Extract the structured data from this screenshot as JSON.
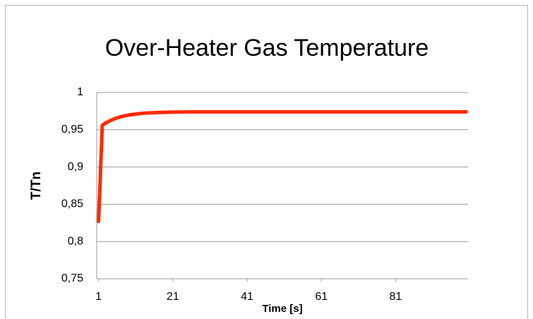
{
  "chart_data": {
    "type": "line",
    "title": "Over-Heater Gas Temperature",
    "xlabel": "Time [s]",
    "ylabel": "T/Tn",
    "x": [
      1,
      2,
      3,
      4,
      5,
      6,
      7,
      8,
      9,
      10,
      11,
      12,
      13,
      14,
      15,
      16,
      17,
      18,
      19,
      20,
      21,
      22,
      23,
      24,
      25,
      26,
      27,
      28,
      29,
      30,
      31,
      32,
      33,
      34,
      35,
      36,
      37,
      38,
      39,
      40,
      41,
      42,
      43,
      44,
      45,
      46,
      47,
      48,
      49,
      50,
      51,
      52,
      53,
      54,
      55,
      56,
      57,
      58,
      59,
      60,
      61,
      62,
      63,
      64,
      65,
      66,
      67,
      68,
      69,
      70,
      71,
      72,
      73,
      74,
      75,
      76,
      77,
      78,
      79,
      80,
      81,
      82,
      83,
      84,
      85,
      86,
      87,
      88,
      89,
      90,
      91,
      92,
      93,
      94,
      95,
      96,
      97,
      98,
      99,
      100
    ],
    "series": [
      {
        "name": "T/Tn",
        "color": "#ff2a00",
        "values": [
          0.827,
          0.956,
          0.9593,
          0.9619,
          0.9641,
          0.9659,
          0.9674,
          0.9686,
          0.9696,
          0.9704,
          0.971,
          0.9716,
          0.972,
          0.9724,
          0.9727,
          0.9729,
          0.9731,
          0.9733,
          0.9734,
          0.9735,
          0.9736,
          0.9737,
          0.9737,
          0.9738,
          0.9738,
          0.9739,
          0.9739,
          0.9739,
          0.9739,
          0.9739,
          0.974,
          0.974,
          0.974,
          0.974,
          0.974,
          0.974,
          0.974,
          0.974,
          0.974,
          0.974,
          0.974,
          0.974,
          0.974,
          0.974,
          0.974,
          0.974,
          0.974,
          0.974,
          0.974,
          0.974,
          0.974,
          0.974,
          0.974,
          0.974,
          0.974,
          0.974,
          0.974,
          0.974,
          0.974,
          0.974,
          0.974,
          0.974,
          0.974,
          0.974,
          0.974,
          0.974,
          0.974,
          0.974,
          0.974,
          0.974,
          0.974,
          0.974,
          0.974,
          0.974,
          0.974,
          0.974,
          0.974,
          0.974,
          0.974,
          0.974,
          0.974,
          0.974,
          0.974,
          0.974,
          0.974,
          0.974,
          0.974,
          0.974,
          0.974,
          0.974,
          0.974,
          0.974,
          0.974,
          0.974,
          0.974,
          0.974,
          0.974,
          0.974,
          0.974,
          0.974
        ]
      }
    ],
    "xlim": [
      0.5,
      100.5
    ],
    "xticks": [
      1,
      21,
      41,
      61,
      81
    ],
    "ylim": [
      0.75,
      1
    ],
    "yticks": [
      {
        "value": 0.75,
        "label": "0,75"
      },
      {
        "value": 0.8,
        "label": "0,8"
      },
      {
        "value": 0.85,
        "label": "0,85"
      },
      {
        "value": 0.9,
        "label": "0,9"
      },
      {
        "value": 0.95,
        "label": "0,95"
      },
      1
    ],
    "grid": true
  }
}
